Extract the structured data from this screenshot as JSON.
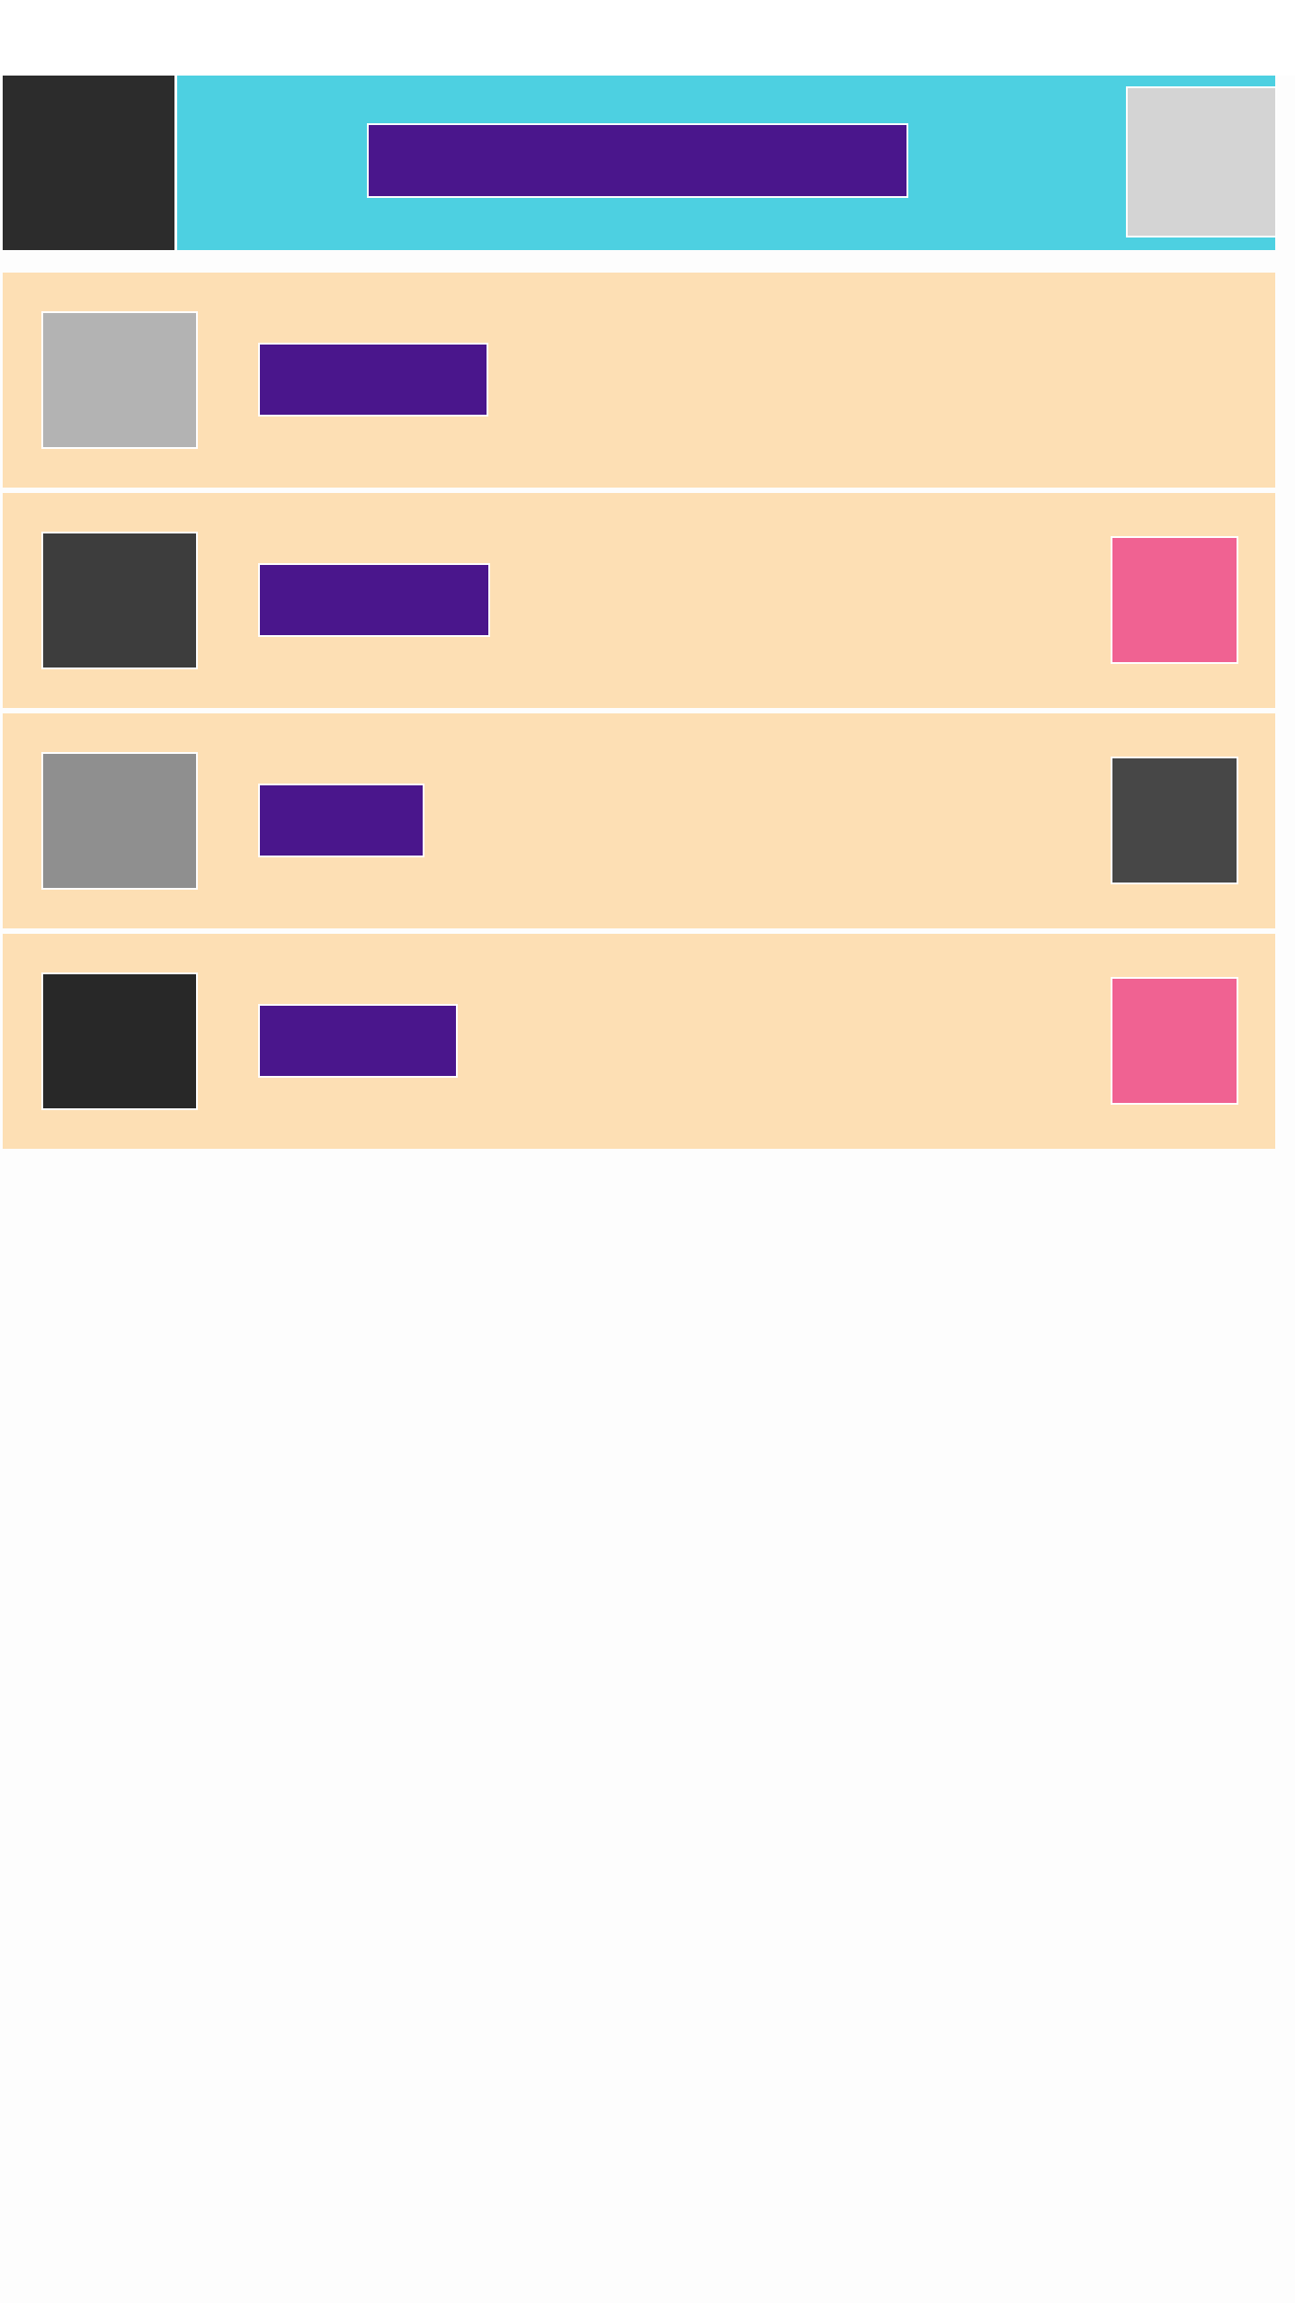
{
  "app_bar": {
    "title": "",
    "nav_icon": "menu-icon",
    "action_icon": "overflow-icon",
    "colors": {
      "background": "#4dd0e1",
      "nav": "#2c2c2c",
      "title": "#4a168c",
      "action": "#d4d4d4"
    }
  },
  "list": {
    "items": [
      {
        "label": "",
        "thumb_color": "#b3b3b3",
        "trailing": false
      },
      {
        "label": "",
        "thumb_color": "#3d3d3d",
        "trailing": true,
        "trailing_color": "#f06292"
      },
      {
        "label": "",
        "thumb_color": "#8f8f8f",
        "trailing": true,
        "trailing_color": "#474747"
      },
      {
        "label": "",
        "thumb_color": "#282828",
        "trailing": true,
        "trailing_color": "#f06292"
      }
    ],
    "colors": {
      "background": "#fddfb4",
      "label": "#4a168c"
    }
  }
}
